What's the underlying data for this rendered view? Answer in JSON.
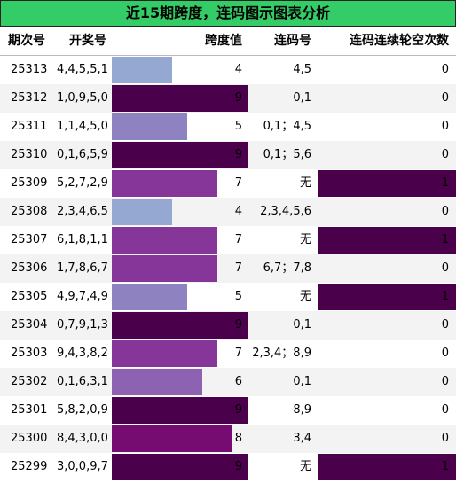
{
  "title": "近15期跨度，连码图示图表分析",
  "headers": {
    "issue": "期次号",
    "draw": "开奖号",
    "span": "跨度值",
    "lianma": "连码号",
    "missing": "连码连续轮空次数"
  },
  "colors": {
    "title_bg": "#33cc66",
    "span_4": "#94a8d2",
    "span_5": "#8f82c0",
    "span_6": "#8d62b2",
    "span_7": "#863598",
    "span_8": "#760c72",
    "span_9": "#4a004a",
    "missing_bar": "#4a004a"
  },
  "chart_data": {
    "type": "table",
    "title": "近15期跨度，连码图示图表分析",
    "columns": [
      "期次号",
      "开奖号",
      "跨度值",
      "连码号",
      "连码连续轮空次数"
    ],
    "span_range": [
      0,
      9
    ],
    "rows": [
      {
        "issue": "25313",
        "draw": "4,4,5,5,1",
        "span": 4,
        "lianma": "4,5",
        "missing": 0
      },
      {
        "issue": "25312",
        "draw": "1,0,9,5,0",
        "span": 9,
        "lianma": "0,1",
        "missing": 0
      },
      {
        "issue": "25311",
        "draw": "1,1,4,5,0",
        "span": 5,
        "lianma": "0,1；4,5",
        "missing": 0
      },
      {
        "issue": "25310",
        "draw": "0,1,6,5,9",
        "span": 9,
        "lianma": "0,1；5,6",
        "missing": 0
      },
      {
        "issue": "25309",
        "draw": "5,2,7,2,9",
        "span": 7,
        "lianma": "无",
        "missing": 1
      },
      {
        "issue": "25308",
        "draw": "2,3,4,6,5",
        "span": 4,
        "lianma": "2,3,4,5,6",
        "missing": 0
      },
      {
        "issue": "25307",
        "draw": "6,1,8,1,1",
        "span": 7,
        "lianma": "无",
        "missing": 1
      },
      {
        "issue": "25306",
        "draw": "1,7,8,6,7",
        "span": 7,
        "lianma": "6,7；7,8",
        "missing": 0
      },
      {
        "issue": "25305",
        "draw": "4,9,7,4,9",
        "span": 5,
        "lianma": "无",
        "missing": 1
      },
      {
        "issue": "25304",
        "draw": "0,7,9,1,3",
        "span": 9,
        "lianma": "0,1",
        "missing": 0
      },
      {
        "issue": "25303",
        "draw": "9,4,3,8,2",
        "span": 7,
        "lianma": "2,3,4；8,9",
        "missing": 0
      },
      {
        "issue": "25302",
        "draw": "0,1,6,3,1",
        "span": 6,
        "lianma": "0,1",
        "missing": 0
      },
      {
        "issue": "25301",
        "draw": "5,8,2,0,9",
        "span": 9,
        "lianma": "8,9",
        "missing": 0
      },
      {
        "issue": "25300",
        "draw": "8,4,3,0,0",
        "span": 8,
        "lianma": "3,4",
        "missing": 0
      },
      {
        "issue": "25299",
        "draw": "3,0,0,9,7",
        "span": 9,
        "lianma": "无",
        "missing": 1
      }
    ]
  }
}
